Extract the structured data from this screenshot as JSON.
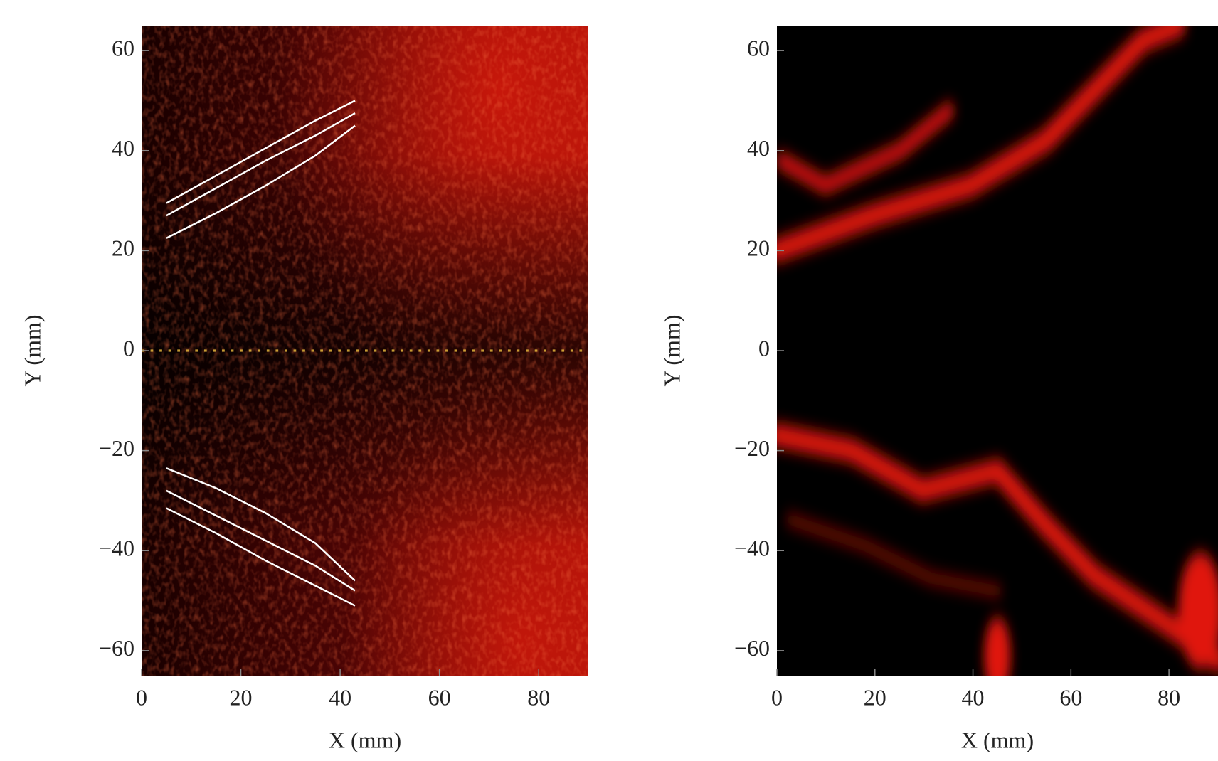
{
  "chart_data": [
    {
      "type": "image",
      "xlabel": "X (mm)",
      "ylabel": "Y (mm)",
      "xlim": [
        0,
        90
      ],
      "ylim": [
        -65,
        65
      ],
      "xticks": [
        0,
        20,
        40,
        60,
        80
      ],
      "yticks": [
        {
          "value": -60,
          "label": "−60"
        },
        {
          "value": -40,
          "label": "−40"
        },
        {
          "value": -20,
          "label": "−20"
        },
        0,
        20,
        40,
        60
      ],
      "series": [
        {
          "color": "#ffffff",
          "x": [
            5,
            15,
            25,
            35,
            43
          ],
          "values": [
            29.5,
            35,
            40.5,
            46,
            50
          ]
        },
        {
          "color": "#ffffff",
          "x": [
            5,
            15,
            25,
            35,
            43
          ],
          "values": [
            27,
            32.5,
            38,
            43,
            47.5
          ]
        },
        {
          "color": "#ffffff",
          "x": [
            5,
            15,
            25,
            35,
            43
          ],
          "values": [
            22.5,
            27.5,
            33,
            39,
            45
          ]
        },
        {
          "color": "#ffffff",
          "x": [
            5,
            15,
            25,
            35,
            43
          ],
          "values": [
            -23.5,
            -27.5,
            -32.5,
            -38.5,
            -46
          ]
        },
        {
          "color": "#ffffff",
          "x": [
            5,
            15,
            25,
            35,
            43
          ],
          "values": [
            -28,
            -33,
            -38,
            -43,
            -48
          ]
        },
        {
          "color": "#ffffff",
          "x": [
            5,
            15,
            25,
            35,
            43
          ],
          "values": [
            -31.5,
            -36.5,
            -42,
            -47,
            -51
          ]
        }
      ]
    },
    {
      "type": "image",
      "xlabel": "X (mm)",
      "ylabel": "Y (mm)",
      "xlim": [
        0,
        90
      ],
      "ylim": [
        -65,
        65
      ],
      "xticks": [
        0,
        20,
        40,
        60,
        80
      ],
      "yticks": [
        {
          "value": -60,
          "label": "−60"
        },
        {
          "value": -40,
          "label": "−40"
        },
        {
          "value": -20,
          "label": "−20"
        },
        0,
        20,
        40,
        60
      ]
    }
  ]
}
